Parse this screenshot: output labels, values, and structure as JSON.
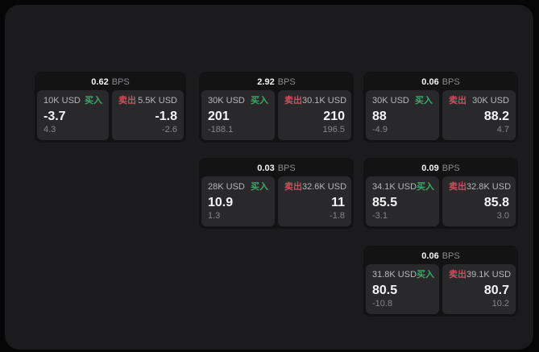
{
  "labels": {
    "buy": "买入",
    "sell": "卖出",
    "bps_unit": "BPS"
  },
  "colors": {
    "buy_green": "#40a768",
    "sell_red": "#cd4f5e",
    "panel_background": "#1b1b1d",
    "card_background": "#131314",
    "tile_background": "#29292b"
  },
  "cards": [
    {
      "spread": "0.62",
      "buy": {
        "size": "10K USD",
        "price": "-3.7",
        "sub": "4.3"
      },
      "sell": {
        "size": "5.5K USD",
        "price": "-1.8",
        "sub": "-2.6"
      }
    },
    {
      "spread": "2.92",
      "buy": {
        "size": "30K USD",
        "price": "201",
        "sub": "-188.1"
      },
      "sell": {
        "size": "30.1K USD",
        "price": "210",
        "sub": "196.5"
      }
    },
    {
      "spread": "0.06",
      "buy": {
        "size": "30K USD",
        "price": "88",
        "sub": "-4.9"
      },
      "sell": {
        "size": "30K USD",
        "price": "88.2",
        "sub": "4.7"
      }
    },
    {
      "spread": "0.03",
      "buy": {
        "size": "28K USD",
        "price": "10.9",
        "sub": "1.3"
      },
      "sell": {
        "size": "32.6K USD",
        "price": "11",
        "sub": "-1.8"
      }
    },
    {
      "spread": "0.09",
      "buy": {
        "size": "34.1K USD",
        "price": "85.5",
        "sub": "-3.1"
      },
      "sell": {
        "size": "32.8K USD",
        "price": "85.8",
        "sub": "3.0"
      }
    },
    {
      "spread": "0.06",
      "buy": {
        "size": "31.8K USD",
        "price": "80.5",
        "sub": "-10.8"
      },
      "sell": {
        "size": "39.1K USD",
        "price": "80.7",
        "sub": "10.2"
      }
    }
  ]
}
